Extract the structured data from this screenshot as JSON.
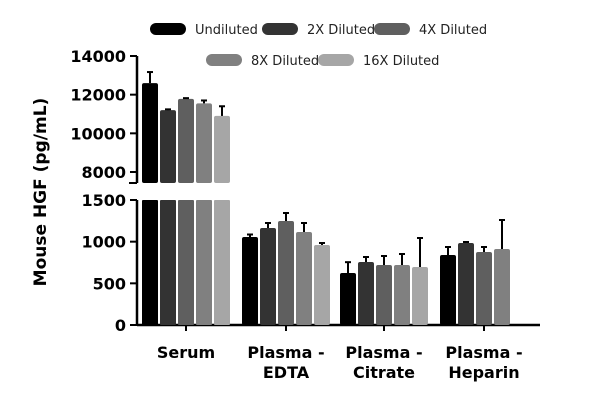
{
  "chart_data": {
    "type": "bar",
    "title": "",
    "xlabel": "",
    "ylabel": "Mouse HGF (pg/mL)",
    "categories": [
      "Serum",
      "Plasma - EDTA",
      "Plasma - Citrate",
      "Plasma - Heparin"
    ],
    "category_lines": [
      [
        "Serum"
      ],
      [
        "Plasma -",
        "EDTA"
      ],
      [
        "Plasma -",
        "Citrate"
      ],
      [
        "Plasma -",
        "Heparin"
      ]
    ],
    "y_axis_break": true,
    "y_lower_segment": {
      "ylim": [
        0,
        1500
      ],
      "ticks": [
        0,
        500,
        1000,
        1500
      ]
    },
    "y_upper_segment": {
      "ylim": [
        7600,
        14000
      ],
      "ticks": [
        8000,
        10000,
        12000,
        14000
      ]
    },
    "grid": false,
    "legend_position": "top",
    "series": [
      {
        "name": "Undiluted",
        "color": "#000000",
        "values": [
          12600,
          1056,
          624,
          840
        ],
        "errors": [
          570,
          30,
          130,
          96
        ]
      },
      {
        "name": "2X Diluted",
        "color": "#333333",
        "values": [
          11200,
          1164,
          756,
          984
        ],
        "errors": [
          40,
          60,
          60,
          12
        ]
      },
      {
        "name": "4X Diluted",
        "color": "#5f5f5f",
        "values": [
          11780,
          1248,
          720,
          876
        ],
        "errors": [
          40,
          96,
          108,
          60
        ]
      },
      {
        "name": "8X Diluted",
        "color": "#808080",
        "values": [
          11550,
          1116,
          720,
          912
        ],
        "errors": [
          150,
          108,
          132,
          348
        ]
      },
      {
        "name": "16X Diluted",
        "color": "#a6a6a6",
        "values": [
          10900,
          960,
          696,
          null
        ],
        "errors": [
          500,
          24,
          348,
          null
        ]
      }
    ]
  }
}
